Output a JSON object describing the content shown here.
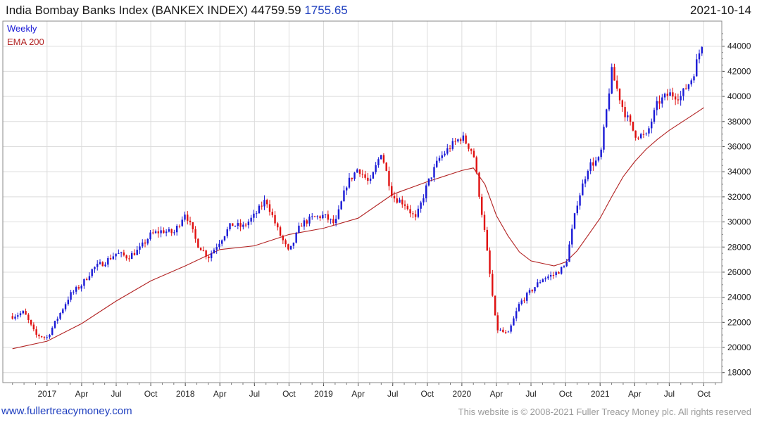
{
  "header": {
    "name": "India Bombay Banks Index (BANKEX INDEX)",
    "last": "44759.59",
    "change": "1755.65",
    "date": "2021-10-14"
  },
  "footer": {
    "site": "www.fullertreacymoney.com",
    "copyright": "This website is © 2008-2021 Fuller Treacy Money plc. All rights reserved"
  },
  "colors": {
    "up": "#1a1ad6",
    "down": "#e01010",
    "ema": "#b22222",
    "grid": "#dcdcdc"
  },
  "chart_data": {
    "type": "line",
    "legend": [
      "Weekly",
      "EMA 200"
    ],
    "x_tick_labels": [
      "2017",
      "Apr",
      "Jul",
      "Oct",
      "2018",
      "Apr",
      "Jul",
      "Oct",
      "2019",
      "Apr",
      "Jul",
      "Oct",
      "2020",
      "Apr",
      "Jul",
      "Oct",
      "2021",
      "Apr",
      "Jul",
      "Oct"
    ],
    "y_tick_labels": [
      "18000",
      "20000",
      "22000",
      "24000",
      "26000",
      "28000",
      "30000",
      "32000",
      "34000",
      "36000",
      "38000",
      "40000",
      "42000",
      "44000"
    ],
    "ylim": [
      17200,
      46000
    ],
    "grid": true,
    "series": [
      {
        "name": "Weekly",
        "x": [
          "2016-10",
          "2016-11",
          "2016-12",
          "2017-01",
          "2017-02",
          "2017-03",
          "2017-04",
          "2017-05",
          "2017-06",
          "2017-07",
          "2017-08",
          "2017-09",
          "2017-10",
          "2017-11",
          "2017-12",
          "2018-01",
          "2018-02",
          "2018-03",
          "2018-04",
          "2018-05",
          "2018-06",
          "2018-07",
          "2018-08",
          "2018-09",
          "2018-10",
          "2018-11",
          "2018-12",
          "2019-01",
          "2019-02",
          "2019-03",
          "2019-04",
          "2019-05",
          "2019-06",
          "2019-07",
          "2019-08",
          "2019-09",
          "2019-10",
          "2019-11",
          "2019-12",
          "2020-01",
          "2020-02",
          "2020-03",
          "2020-04",
          "2020-05",
          "2020-06",
          "2020-07",
          "2020-08",
          "2020-09",
          "2020-10",
          "2020-11",
          "2020-12",
          "2021-01",
          "2021-02",
          "2021-03",
          "2021-04",
          "2021-05",
          "2021-06",
          "2021-07",
          "2021-08",
          "2021-09",
          "2021-10"
        ],
        "values": [
          22500,
          22800,
          21000,
          20800,
          22500,
          24200,
          25000,
          26300,
          26800,
          27500,
          27200,
          27800,
          29000,
          29300,
          29100,
          30800,
          28300,
          27200,
          28500,
          29800,
          29600,
          30500,
          31800,
          29400,
          27500,
          29800,
          30300,
          30500,
          29800,
          33000,
          34300,
          33000,
          35600,
          32000,
          31500,
          30200,
          33000,
          35000,
          36000,
          36800,
          35500,
          29000,
          21500,
          21000,
          23500,
          24500,
          25500,
          25800,
          26500,
          31500,
          34500,
          35000,
          42000,
          39000,
          37000,
          36800,
          39500,
          40200,
          40000,
          41500,
          44760
        ]
      },
      {
        "name": "EMA 200",
        "x": [
          "2016-10",
          "2017-01",
          "2017-04",
          "2017-07",
          "2017-10",
          "2018-01",
          "2018-04",
          "2018-07",
          "2018-10",
          "2019-01",
          "2019-04",
          "2019-07",
          "2019-10",
          "2020-01",
          "2020-02",
          "2020-03",
          "2020-04",
          "2020-05",
          "2020-06",
          "2020-07",
          "2020-08",
          "2020-09",
          "2020-10",
          "2020-11",
          "2020-12",
          "2021-01",
          "2021-02",
          "2021-03",
          "2021-04",
          "2021-05",
          "2021-06",
          "2021-07",
          "2021-08",
          "2021-09",
          "2021-10"
        ],
        "values": [
          19900,
          20500,
          21900,
          23700,
          25300,
          26500,
          27800,
          28100,
          29000,
          29500,
          30300,
          32200,
          33200,
          34100,
          34300,
          33000,
          30500,
          28900,
          27600,
          26900,
          26700,
          26500,
          26800,
          27700,
          29000,
          30300,
          32000,
          33600,
          34800,
          35800,
          36600,
          37300,
          37900,
          38500,
          39100
        ]
      }
    ]
  }
}
